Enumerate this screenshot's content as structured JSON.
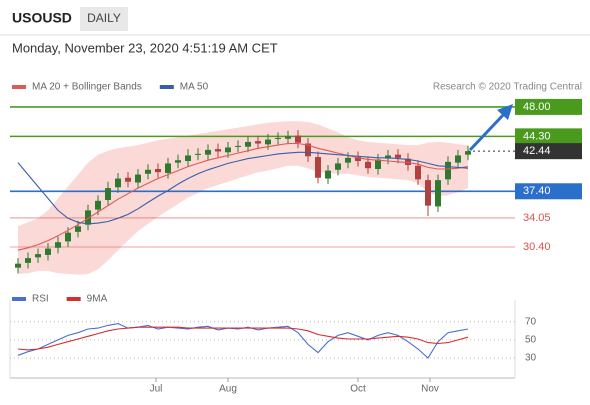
{
  "header": {
    "symbol": "USOUSD",
    "timeframe": "DAILY",
    "timestamp": "Monday, November 23, 2020 4:51:19 AM CET"
  },
  "chart_data": [
    {
      "type": "candlestick",
      "source": "Research © 2020 Trading Central",
      "xlim": [
        -0.8,
        49.7
      ],
      "ylim": [
        26,
        50
      ],
      "up_color": "#2f7a2f",
      "down_color": "#b0413e",
      "open": [
        27.8,
        28.4,
        29.1,
        29.4,
        30.3,
        31.1,
        32.3,
        33.2,
        35.1,
        36.3,
        37.9,
        39.1,
        38.5,
        39.6,
        40.2,
        39.7,
        41.0,
        41.2,
        42.0,
        42.0,
        42.7,
        42.3,
        43.0,
        43.0,
        43.7,
        43.3,
        44.0,
        44.0,
        44.4,
        43.4,
        41.7,
        39.0,
        40.1,
        41.0,
        41.7,
        41.1,
        40.2,
        41.5,
        42.0,
        41.5,
        40.6,
        38.8,
        35.5,
        38.9,
        41.0,
        42.0
      ],
      "high": [
        29.0,
        29.7,
        30.2,
        30.9,
        31.7,
        32.9,
        33.7,
        35.7,
        36.9,
        38.6,
        39.7,
        39.8,
        40.2,
        40.8,
        40.9,
        41.6,
        42.0,
        42.7,
        42.8,
        43.3,
        43.4,
        43.6,
        43.8,
        44.3,
        44.4,
        44.6,
        44.8,
        45.0,
        45.1,
        44.1,
        42.4,
        40.7,
        41.6,
        42.3,
        42.4,
        41.8,
        42.1,
        42.6,
        42.7,
        42.2,
        41.3,
        39.5,
        39.5,
        41.8,
        42.6,
        43.1
      ],
      "low": [
        27.1,
        27.7,
        28.4,
        28.7,
        29.6,
        30.4,
        31.6,
        32.5,
        34.4,
        35.6,
        37.2,
        37.9,
        37.8,
        38.9,
        39.1,
        39.0,
        40.3,
        40.5,
        41.3,
        41.3,
        41.7,
        41.6,
        42.3,
        42.3,
        42.7,
        42.6,
        43.3,
        43.3,
        42.8,
        41.1,
        38.4,
        38.3,
        39.4,
        40.3,
        40.5,
        39.6,
        39.5,
        40.8,
        40.9,
        40.0,
        38.2,
        34.3,
        34.8,
        38.2,
        40.3,
        41.3
      ],
      "close": [
        28.3,
        29.0,
        29.5,
        30.2,
        31.0,
        32.2,
        33.0,
        35.0,
        36.2,
        37.8,
        39.0,
        38.6,
        39.5,
        40.1,
        39.8,
        40.9,
        41.3,
        41.9,
        42.1,
        42.6,
        42.4,
        42.9,
        43.1,
        43.6,
        43.4,
        43.9,
        44.1,
        44.3,
        43.5,
        41.8,
        39.1,
        40.0,
        40.9,
        41.6,
        41.2,
        40.3,
        41.4,
        41.9,
        41.6,
        40.7,
        38.9,
        35.6,
        38.8,
        41.1,
        41.9,
        42.44
      ],
      "series": [
        {
          "name": "MA 20 + Bollinger Bands",
          "color": "#e05a55",
          "band_color": "#fbd9d7",
          "values": [
            30,
            30.3,
            30.7,
            31.2,
            31.8,
            32.5,
            33.2,
            34,
            34.8,
            35.6,
            36.4,
            37.1,
            37.8,
            38.4,
            39,
            39.5,
            40,
            40.5,
            40.9,
            41.3,
            41.6,
            41.9,
            42.2,
            42.5,
            42.8,
            43,
            43.2,
            43.4,
            43.4,
            43.2,
            42.8,
            42.5,
            42.2,
            41.9,
            41.6,
            41.4,
            41.3,
            41.2,
            41.1,
            41,
            40.8,
            40.4,
            40.2,
            40.2,
            40.3,
            40.5
          ],
          "band_upper": [
            33,
            33.5,
            34,
            35,
            36.5,
            38,
            39.5,
            41,
            42,
            42.5,
            42.8,
            43,
            43.2,
            43.5,
            43.8,
            44,
            44.2,
            44.4,
            44.6,
            44.8,
            45,
            45.2,
            45.4,
            45.6,
            45.8,
            46,
            46.1,
            46.2,
            46.2,
            46.1,
            45.8,
            45.3,
            44.8,
            44.2,
            43.8,
            43.6,
            43.5,
            43.4,
            43.3,
            43.2,
            43.2,
            43.5,
            43.6,
            43.5,
            43.3,
            43.2
          ],
          "band_lower": [
            27,
            27.1,
            27.4,
            27.4,
            27.1,
            27,
            26.9,
            27,
            27.6,
            28.7,
            30,
            31.2,
            32.4,
            33.3,
            34.2,
            35,
            35.8,
            36.6,
            37.2,
            37.8,
            38.2,
            38.6,
            39,
            39.4,
            39.8,
            40,
            40.3,
            40.6,
            40.6,
            40.3,
            39.8,
            39.7,
            39.6,
            39.6,
            39.4,
            39.2,
            39.1,
            39,
            38.9,
            38.8,
            38.4,
            37.3,
            36.8,
            36.9,
            37.3,
            37.8
          ]
        },
        {
          "name": "MA 50",
          "color": "#3a5ea8",
          "values": [
            41,
            39.5,
            38,
            36.5,
            35,
            34,
            33.5,
            33.3,
            33.4,
            33.6,
            34,
            34.5,
            35.2,
            36,
            36.8,
            37.5,
            38.3,
            39,
            39.6,
            40.1,
            40.5,
            40.9,
            41.2,
            41.5,
            41.7,
            41.9,
            42.1,
            42.2,
            42.3,
            42.3,
            42.2,
            42.1,
            42,
            41.9,
            41.8,
            41.7,
            41.6,
            41.6,
            41.5,
            41.4,
            41.2,
            40.9,
            40.6,
            40.5,
            40.4,
            40.3
          ]
        }
      ],
      "levels": [
        {
          "value": 48,
          "label": "48.00",
          "color": "#4a9a1e",
          "label_style": "box",
          "line": "solid"
        },
        {
          "value": 44.3,
          "label": "44.30",
          "color": "#4a9a1e",
          "label_style": "box",
          "line": "solid"
        },
        {
          "value": 42.44,
          "label": "42.44",
          "color": "#333333",
          "label_style": "box",
          "line": "dotted"
        },
        {
          "value": 37.4,
          "label": "37.40",
          "color": "#2a6fc9",
          "label_style": "box",
          "line": "solid"
        },
        {
          "value": 34.05,
          "label": "34.05",
          "color": "#d9534f",
          "label_style": "text",
          "line": "solid"
        },
        {
          "value": 30.4,
          "label": "30.40",
          "color": "#d9534f",
          "label_style": "text",
          "line": "solid"
        }
      ]
    },
    {
      "type": "line",
      "xlim": [
        -0.8,
        49.7
      ],
      "ylim": [
        8,
        94
      ],
      "yticks": [
        30,
        50,
        70
      ],
      "xticks": [
        {
          "value": 13.8,
          "label": "Jul"
        },
        {
          "value": 21,
          "label": "Aug"
        },
        {
          "value": 34,
          "label": "Oct"
        },
        {
          "value": 41.2,
          "label": "Nov"
        }
      ],
      "series": [
        {
          "name": "RSI",
          "color": "#4a6fd1",
          "values": [
            33,
            37,
            40,
            45,
            50,
            55,
            58,
            62,
            63,
            66,
            68,
            63,
            64,
            66,
            62,
            64,
            63,
            62,
            64,
            65,
            61,
            63,
            62,
            64,
            61,
            63,
            64,
            65,
            58,
            45,
            36,
            48,
            55,
            58,
            54,
            50,
            55,
            58,
            55,
            48,
            40,
            30,
            48,
            58,
            60,
            62
          ]
        },
        {
          "name": "9MA",
          "color": "#d32f2f",
          "values": [
            40,
            39,
            40,
            42,
            45,
            48,
            51,
            54,
            57,
            60,
            62,
            63,
            64,
            64,
            64,
            64,
            64,
            63,
            63,
            63,
            63,
            63,
            63,
            63,
            63,
            63,
            63,
            63,
            62,
            60,
            56,
            54,
            52,
            51,
            51,
            51,
            52,
            53,
            54,
            53,
            51,
            47,
            46,
            47,
            50,
            53
          ]
        }
      ]
    }
  ]
}
